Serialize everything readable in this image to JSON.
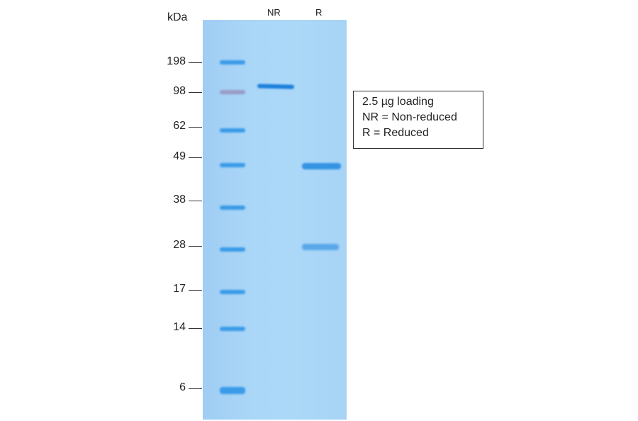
{
  "axis_unit": "kDa",
  "lanes": [
    "NR",
    "R"
  ],
  "markers": [
    "198",
    "98",
    "62",
    "49",
    "38",
    "28",
    "17",
    "14",
    "6"
  ],
  "legend": [
    "2.5 µg loading",
    "NR = Non-reduced",
    "R = Reduced"
  ],
  "colors": {
    "gel": "#a9d5f7",
    "band": "#1f86e0",
    "marker_98": "#9a9cc4"
  }
}
